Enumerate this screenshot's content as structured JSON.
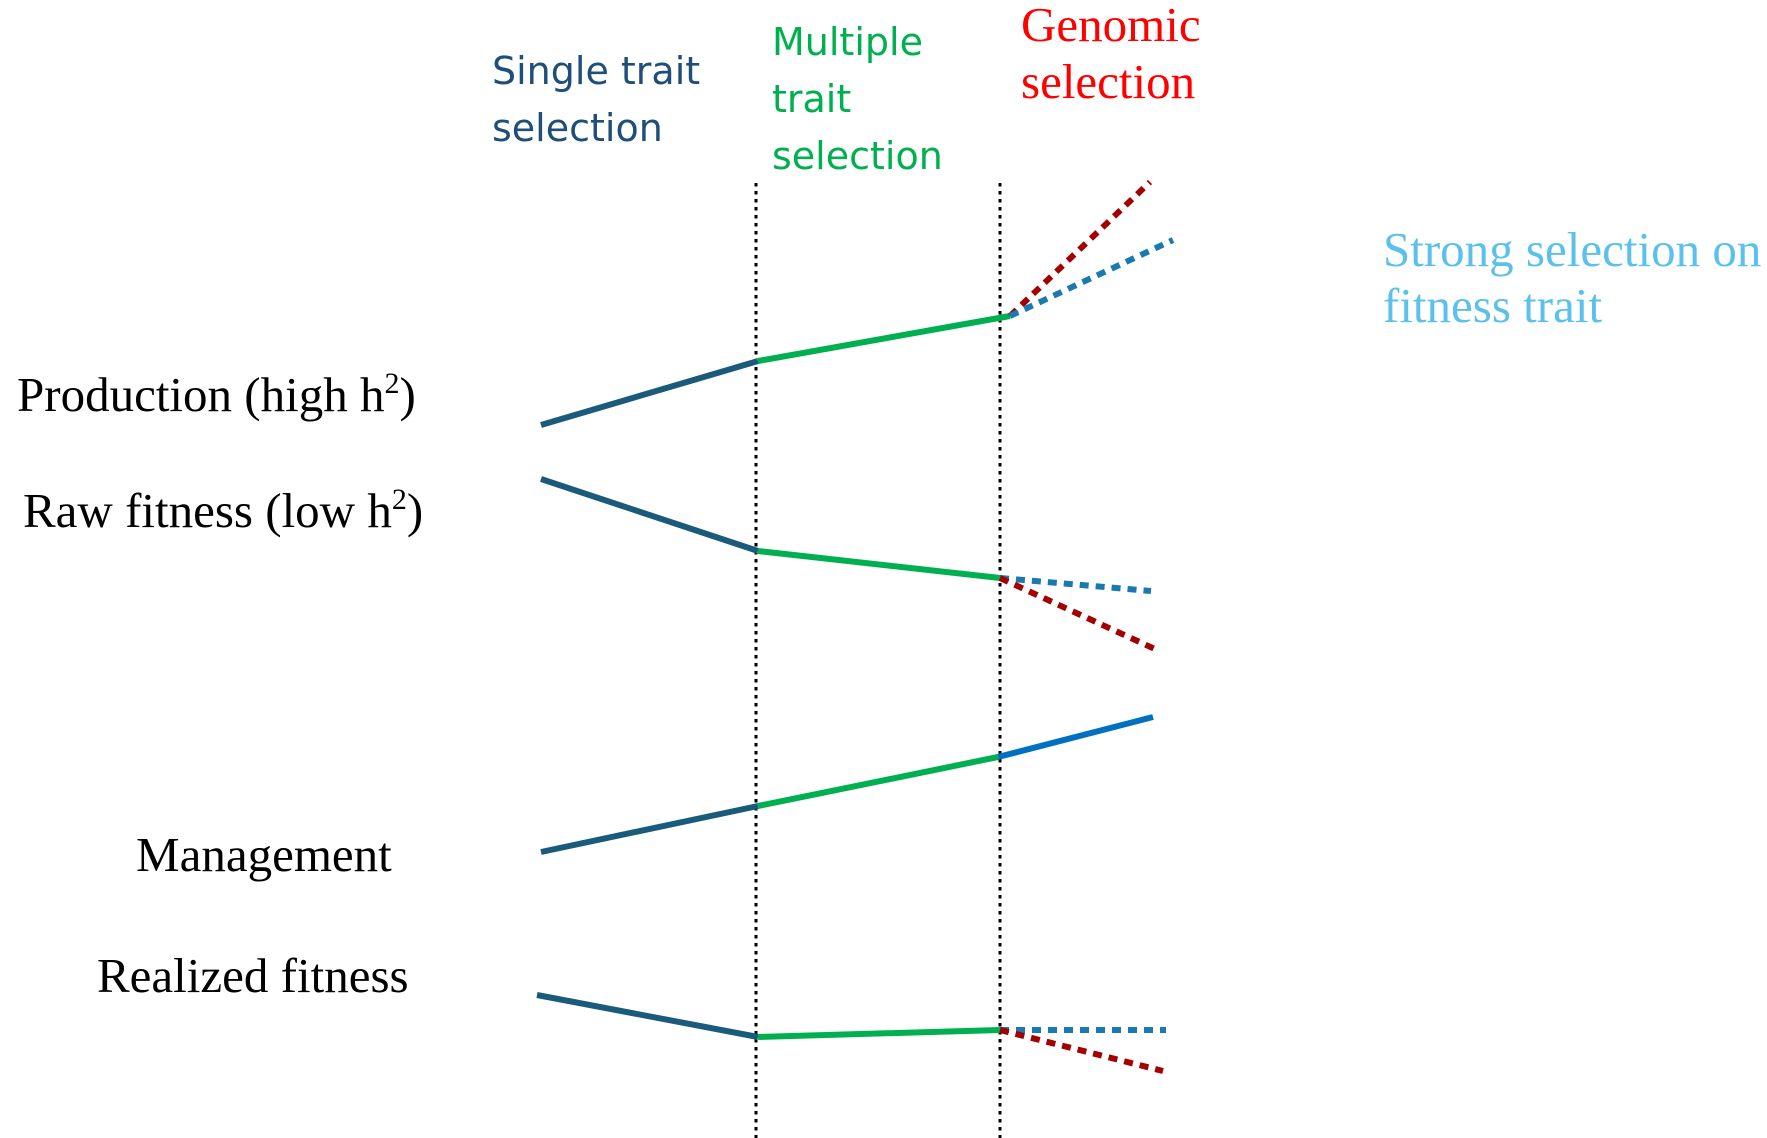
{
  "headers": {
    "single": [
      "Single trait",
      "selection"
    ],
    "multiple": [
      "Multiple",
      "trait",
      "selection"
    ],
    "genomic": [
      "Genomic",
      "selection"
    ]
  },
  "labels": {
    "production": {
      "text": "Production (high h",
      "sup": "2",
      "close": ")"
    },
    "raw_fitness": {
      "text": "Raw fitness (low h",
      "sup": "2",
      "close": ")"
    },
    "management": "Management",
    "realized_fitness": "Realized fitness"
  },
  "annotation": [
    "Strong selection on",
    " fitness trait"
  ],
  "colors": {
    "single_trait": "#1a5a7a",
    "multiple_trait": "#00b050",
    "genomic": "#ff0000",
    "header_single": "#1f4e79",
    "annotation": "#5bc0eb",
    "dotted_red": "#a50000",
    "dotted_blue": "#1a7ab0",
    "solid_blue": "#0070c0"
  }
}
